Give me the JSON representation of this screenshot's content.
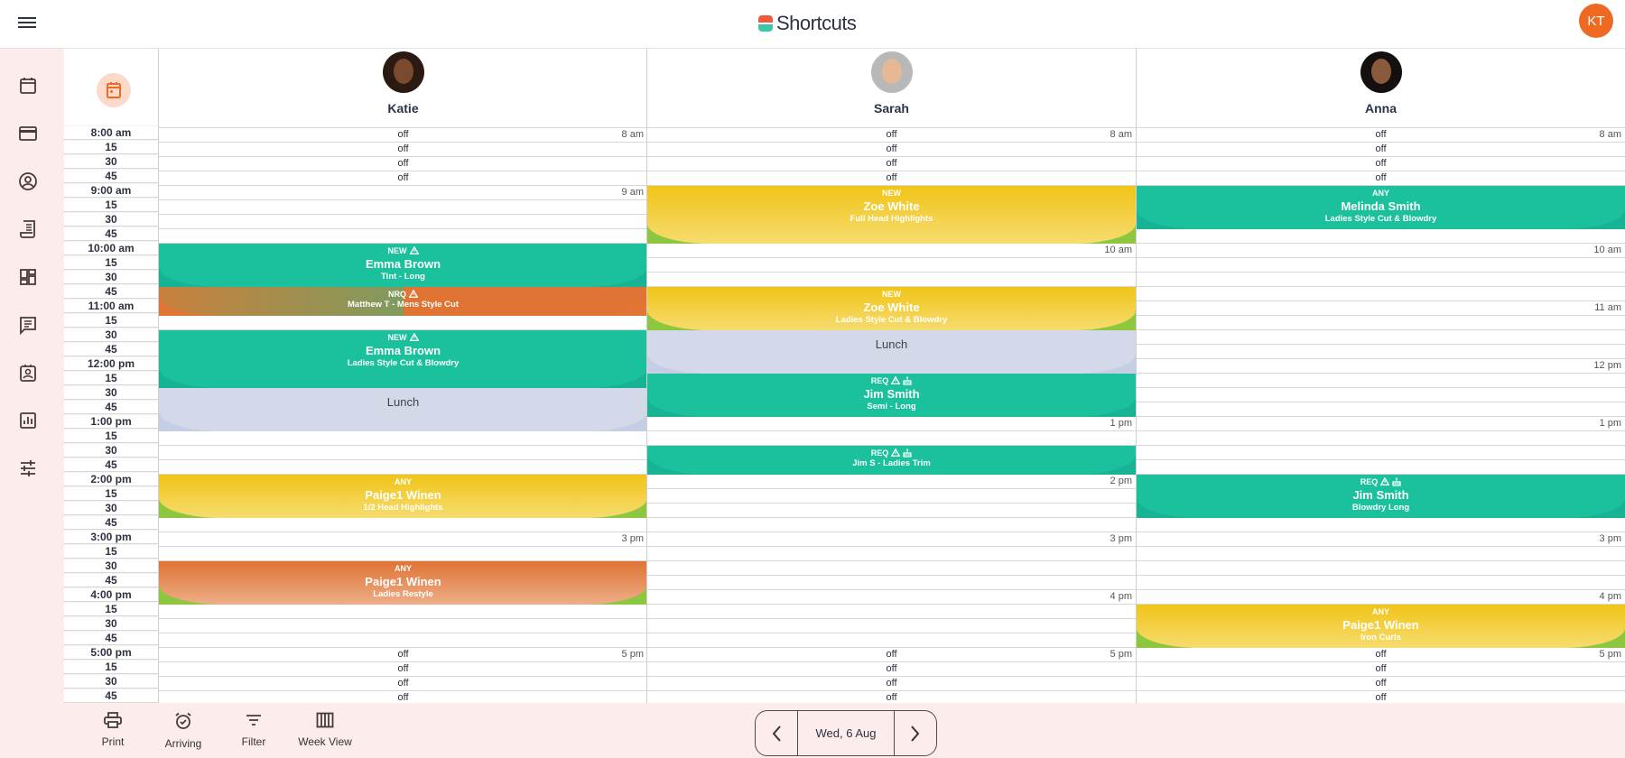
{
  "header": {
    "logo": "Shortcuts",
    "user_initials": "KT"
  },
  "sidebar": {
    "items": [
      "calendar-icon",
      "card-icon",
      "client-icon",
      "receipt-icon",
      "dashboard-icon",
      "messages-icon",
      "staff-icon",
      "reports-icon",
      "settings-icon"
    ]
  },
  "colors": {
    "teal": "#1bbf9c",
    "yellow": "#f1c40f",
    "orange": "#e07535",
    "lunch": "#d3d9e8",
    "accent": "#ee6a22",
    "sidebar_bg": "#fdecec"
  },
  "times": [
    "8:00 am",
    "15",
    "30",
    "45",
    "9:00 am",
    "15",
    "30",
    "45",
    "10:00 am",
    "15",
    "30",
    "45",
    "11:00 am",
    "15",
    "30",
    "45",
    "12:00 pm",
    "15",
    "30",
    "45",
    "1:00 pm",
    "15",
    "30",
    "45",
    "2:00 pm",
    "15",
    "30",
    "45",
    "3:00 pm",
    "15",
    "30",
    "45",
    "4:00 pm",
    "15",
    "30",
    "45",
    "5:00 pm",
    "15",
    "30",
    "45"
  ],
  "hour_labels": [
    "8 am",
    "9 am",
    "10 am",
    "11 am",
    "12 pm",
    "1 pm",
    "2 pm",
    "3 pm",
    "4 pm",
    "5 pm"
  ],
  "off_label": "off",
  "off_ranges": [
    [
      "8:00 am",
      "9:00 am"
    ],
    [
      "5:00 pm",
      "6:00 pm"
    ]
  ],
  "staff": [
    {
      "name": "Katie",
      "appointments": [
        {
          "tag": "NEW",
          "icons": [
            "warning"
          ],
          "client": "Emma Brown",
          "service": "Tint - Long",
          "color": "teal",
          "start": "10:00 am",
          "end": "10:45 am"
        },
        {
          "tag": "NRQ",
          "icons": [
            "warning"
          ],
          "client": "Matthew T - Mens Style Cut",
          "service": "",
          "color": "nrq",
          "start": "10:45 am",
          "end": "11:15 am"
        },
        {
          "tag": "NEW",
          "icons": [
            "warning"
          ],
          "client": "Emma Brown",
          "service": "Ladies Style Cut & Blowdry",
          "color": "teal",
          "start": "11:30 am",
          "end": "12:30 pm"
        },
        {
          "tag": "",
          "icons": [],
          "client": "Lunch",
          "service": "",
          "color": "lunch",
          "start": "12:30 pm",
          "end": "1:15 pm"
        },
        {
          "tag": "ANY",
          "icons": [],
          "client": "Paige1 Winen",
          "service": "1/2 Head Highlights",
          "color": "yellow",
          "start": "2:00 pm",
          "end": "2:45 pm"
        },
        {
          "tag": "ANY",
          "icons": [],
          "client": "Paige1 Winen",
          "service": "Ladies Restyle",
          "color": "orange",
          "start": "3:30 pm",
          "end": "4:15 pm"
        }
      ]
    },
    {
      "name": "Sarah",
      "appointments": [
        {
          "tag": "NEW",
          "icons": [],
          "client": "Zoe White",
          "service": "Full Head Highlights",
          "color": "yellow",
          "start": "9:00 am",
          "end": "10:00 am"
        },
        {
          "tag": "NEW",
          "icons": [],
          "client": "Zoe White",
          "service": "Ladies Style Cut & Blowdry",
          "color": "yellow",
          "start": "10:45 am",
          "end": "11:30 am"
        },
        {
          "tag": "",
          "icons": [],
          "client": "Lunch",
          "service": "",
          "color": "lunch",
          "start": "11:30 am",
          "end": "12:15 pm"
        },
        {
          "tag": "REQ",
          "icons": [
            "warning",
            "cake"
          ],
          "client": "Jim Smith",
          "service": "Semi - Long",
          "color": "teal",
          "start": "12:15 pm",
          "end": "1:00 pm"
        },
        {
          "tag": "REQ",
          "icons": [
            "warning",
            "cake"
          ],
          "client": "Jim S - Ladies Trim",
          "service": "",
          "color": "teal",
          "start": "1:30 pm",
          "end": "2:00 pm"
        }
      ]
    },
    {
      "name": "Anna",
      "appointments": [
        {
          "tag": "ANY",
          "icons": [],
          "client": "Melinda Smith",
          "service": "Ladies Style Cut & Blowdry",
          "color": "teal",
          "start": "9:00 am",
          "end": "9:45 am"
        },
        {
          "tag": "REQ",
          "icons": [
            "warning",
            "cake"
          ],
          "client": "Jim Smith",
          "service": "Blowdry Long",
          "color": "teal",
          "start": "2:00 pm",
          "end": "2:45 pm"
        },
        {
          "tag": "ANY",
          "icons": [],
          "client": "Paige1 Winen",
          "service": "Iron Curls",
          "color": "yellow",
          "start": "4:15 pm",
          "end": "5:00 pm"
        }
      ]
    }
  ],
  "toolbar": {
    "print": "Print",
    "arriving": "Arriving",
    "filter": "Filter",
    "week_view": "Week View"
  },
  "date_nav": {
    "date": "Wed, 6 Aug"
  }
}
